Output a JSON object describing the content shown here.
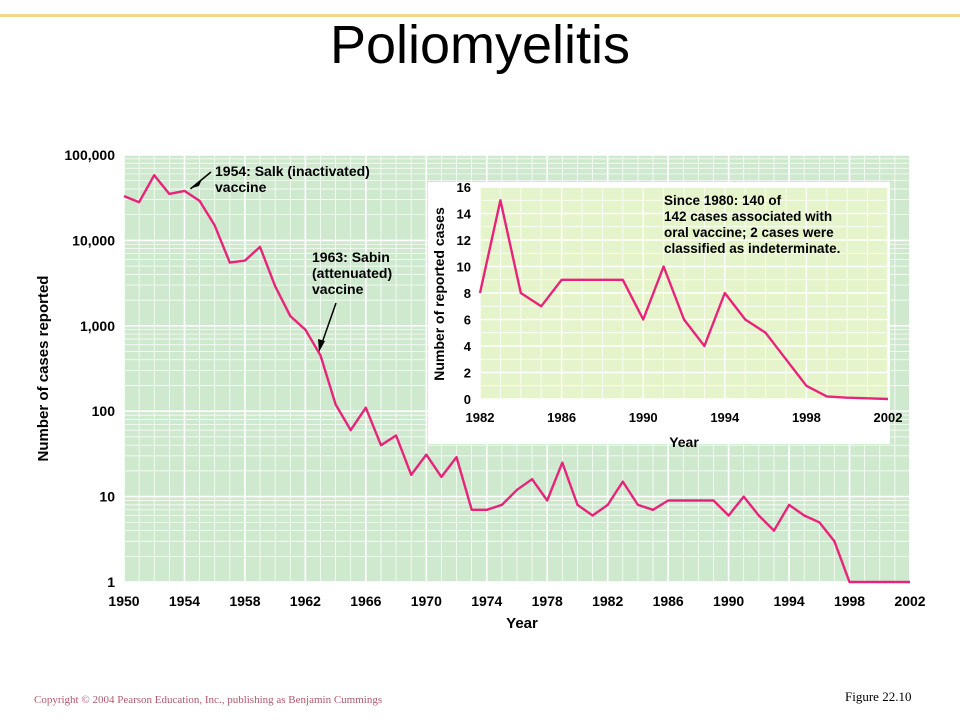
{
  "slide": {
    "title": "Poliomyelitis",
    "copyright": "Copyright © 2004 Pearson Education, Inc., publishing as Benjamin Cummings",
    "figure_label": "Figure 22.10"
  },
  "colors": {
    "plot_bg": "#cfe9cf",
    "grid": "#ffffff",
    "line": "#e8247a",
    "inset_bg": "#e6f4cc"
  },
  "chart_data": [
    {
      "type": "line",
      "scale_y": "log",
      "xlabel": "Year",
      "ylabel": "Number of cases reported",
      "xlim": [
        1950,
        2002
      ],
      "ylim": [
        1,
        100000
      ],
      "grid": true,
      "x_ticks": [
        "1950",
        "1954",
        "1958",
        "1962",
        "1966",
        "1970",
        "1974",
        "1978",
        "1982",
        "1986",
        "1990",
        "1994",
        "1998",
        "2002"
      ],
      "y_ticks": [
        {
          "value": 100000,
          "label": "100,000"
        },
        {
          "value": 10000,
          "label": "10,000"
        },
        {
          "value": 1000,
          "label": "1,000"
        },
        {
          "value": 100,
          "label": "100"
        },
        {
          "value": 10,
          "label": "10"
        },
        {
          "value": 1,
          "label": "1"
        }
      ],
      "x": [
        1950,
        1951,
        1952,
        1953,
        1954,
        1955,
        1956,
        1957,
        1958,
        1959,
        1960,
        1961,
        1962,
        1963,
        1964,
        1965,
        1966,
        1967,
        1968,
        1969,
        1970,
        1971,
        1972,
        1973,
        1974,
        1975,
        1976,
        1977,
        1978,
        1979,
        1980,
        1981,
        1982,
        1983,
        1984,
        1985,
        1986,
        1987,
        1988,
        1989,
        1990,
        1991,
        1992,
        1993,
        1994,
        1995,
        1996,
        1997,
        1998,
        1999,
        2000,
        2001,
        2002
      ],
      "y": [
        33000,
        28000,
        58000,
        35000,
        38000,
        29000,
        15000,
        5500,
        5800,
        8400,
        2900,
        1300,
        900,
        450,
        120,
        60,
        110,
        40,
        52,
        18,
        31,
        17,
        29,
        7,
        7,
        8,
        12,
        16,
        9,
        25,
        8,
        6,
        8,
        15,
        8,
        7,
        9,
        9,
        9,
        9,
        6,
        10,
        6,
        4,
        8,
        6,
        5,
        3,
        1,
        1,
        1,
        1,
        1
      ],
      "annotations": [
        {
          "text_lines": [
            "1954: Salk (inactivated)",
            "vaccine"
          ],
          "x": 1954,
          "y": 38000
        },
        {
          "text_lines": [
            "1963: Sabin",
            "(attenuated)",
            "vaccine"
          ],
          "x": 1963,
          "y": 450
        }
      ]
    },
    {
      "type": "line",
      "xlabel": "Year",
      "ylabel": "Number of reported cases",
      "xlim": [
        1982,
        2002
      ],
      "ylim": [
        0,
        16
      ],
      "grid": true,
      "x_ticks": [
        "1982",
        "1986",
        "1990",
        "1994",
        "1998",
        "2002"
      ],
      "y_ticks": [
        "0",
        "2",
        "4",
        "6",
        "8",
        "10",
        "12",
        "14",
        "16"
      ],
      "x": [
        1982,
        1983,
        1984,
        1985,
        1986,
        1987,
        1988,
        1989,
        1990,
        1991,
        1992,
        1993,
        1994,
        1995,
        1996,
        1997,
        1998,
        1999,
        2000,
        2001,
        2002
      ],
      "y": [
        8,
        15,
        8,
        7,
        9,
        9,
        9,
        9,
        6,
        10,
        6,
        4,
        8,
        6,
        5,
        3,
        1,
        0.2,
        0.1,
        0.05,
        0
      ],
      "annotation_lines": [
        "Since 1980: 140 of",
        "142 cases associated with",
        "oral vaccine; 2 cases were",
        "classified as indeterminate."
      ]
    }
  ]
}
